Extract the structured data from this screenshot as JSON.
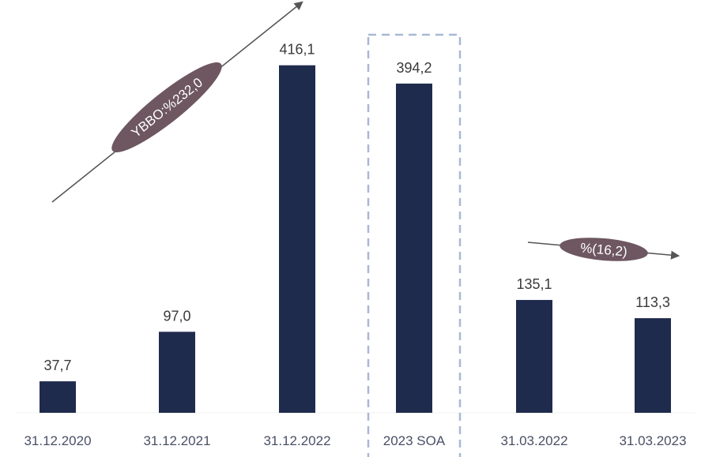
{
  "chart_data": {
    "type": "bar",
    "categories": [
      "31.12.2020",
      "31.12.2021",
      "31.12.2022",
      "2023 SOA",
      "31.03.2022",
      "31.03.2023"
    ],
    "values": [
      37.7,
      97.0,
      416.1,
      394.2,
      135.1,
      113.3
    ],
    "value_labels": [
      "37,7",
      "97,0",
      "416,1",
      "394,2",
      "135,1",
      "113,3"
    ],
    "ylim": [
      0,
      430
    ],
    "title": "",
    "xlabel": "",
    "ylabel": "",
    "grid": false,
    "highlighted_category": "2023 SOA",
    "annotations": [
      {
        "text": "YBBO:%232,0",
        "from_category": "31.12.2020",
        "to_category": "31.12.2022",
        "direction": "up"
      },
      {
        "text": "%(16,2)",
        "from_category": "31.03.2022",
        "to_category": "31.03.2023",
        "direction": "right"
      }
    ],
    "colors": {
      "bar": "#1f2b4d",
      "annotation_fill": "#6e5761",
      "arrow": "#555555",
      "highlight_box": "#a9b8d6",
      "tick_text": "#4a4f66",
      "value_text": "#3a3a3a"
    }
  }
}
